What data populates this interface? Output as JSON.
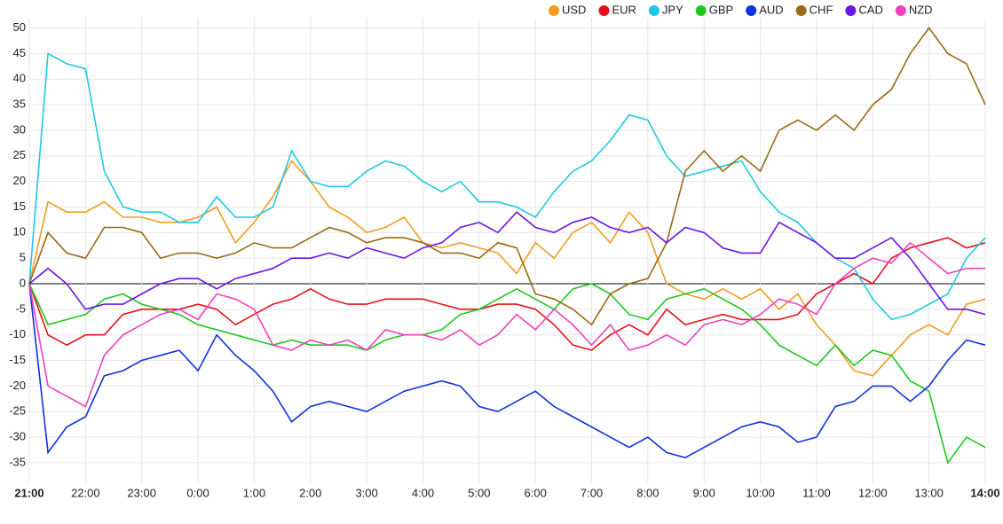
{
  "chart_data": {
    "type": "line",
    "categories": [
      "21:00",
      null,
      null,
      "22:00",
      null,
      null,
      "23:00",
      null,
      null,
      "0:00",
      null,
      null,
      "1:00",
      null,
      null,
      "2:00",
      null,
      null,
      "3:00",
      null,
      null,
      "4:00",
      null,
      null,
      "5:00",
      null,
      null,
      "6:00",
      null,
      null,
      "7:00",
      null,
      null,
      "8:00",
      null,
      null,
      "9:00",
      null,
      null,
      "10:00",
      null,
      null,
      "11:00",
      null,
      null,
      "12:00",
      null,
      null,
      "13:00",
      null,
      null,
      "14:00"
    ],
    "series": [
      {
        "name": "USD",
        "color": "#f39c1e",
        "values": [
          0,
          16,
          14,
          14,
          16,
          13,
          13,
          12,
          12,
          13,
          15,
          8,
          12,
          17,
          24,
          20,
          15,
          13,
          10,
          11,
          13,
          8,
          7,
          8,
          7,
          6,
          2,
          8,
          5,
          10,
          12,
          8,
          14,
          10,
          0,
          -2,
          -3,
          -1,
          -3,
          -1,
          -5,
          -2,
          -8,
          -12,
          -17,
          -18,
          -14,
          -10,
          -8,
          -10,
          -4,
          -3
        ]
      },
      {
        "name": "EUR",
        "color": "#e8101a",
        "values": [
          0,
          -10,
          -12,
          -10,
          -10,
          -6,
          -5,
          -5,
          -5,
          -4,
          -5,
          -8,
          -6,
          -4,
          -3,
          -1,
          -3,
          -4,
          -4,
          -3,
          -3,
          -3,
          -4,
          -5,
          -5,
          -4,
          -4,
          -5,
          -8,
          -12,
          -13,
          -10,
          -8,
          -10,
          -5,
          -8,
          -7,
          -6,
          -7,
          -7,
          -7,
          -6,
          -2,
          0,
          2,
          0,
          5,
          7,
          8,
          9,
          7,
          8
        ]
      },
      {
        "name": "JPY",
        "color": "#1ec8e8",
        "values": [
          0,
          45,
          43,
          42,
          22,
          15,
          14,
          14,
          12,
          12,
          17,
          13,
          13,
          15,
          26,
          20,
          19,
          19,
          22,
          24,
          23,
          20,
          18,
          20,
          16,
          16,
          15,
          13,
          18,
          22,
          24,
          28,
          33,
          32,
          25,
          21,
          22,
          23,
          24,
          18,
          14,
          12,
          8,
          5,
          3,
          -3,
          -7,
          -6,
          -4,
          -2,
          5,
          9
        ]
      },
      {
        "name": "GBP",
        "color": "#1ec81e",
        "values": [
          0,
          -8,
          -7,
          -6,
          -3,
          -2,
          -4,
          -5,
          -6,
          -8,
          -9,
          -10,
          -11,
          -12,
          -11,
          -12,
          -12,
          -12,
          -13,
          -11,
          -10,
          -10,
          -9,
          -6,
          -5,
          -3,
          -1,
          -3,
          -5,
          -1,
          0,
          -2,
          -6,
          -7,
          -3,
          -2,
          -1,
          -3,
          -5,
          -8,
          -12,
          -14,
          -16,
          -12,
          -16,
          -13,
          -14,
          -19,
          -21,
          -35,
          -30,
          -32
        ]
      },
      {
        "name": "AUD",
        "color": "#1032e0",
        "values": [
          0,
          -33,
          -28,
          -26,
          -18,
          -17,
          -15,
          -14,
          -13,
          -17,
          -10,
          -14,
          -17,
          -21,
          -27,
          -24,
          -23,
          -24,
          -25,
          -23,
          -21,
          -20,
          -19,
          -20,
          -24,
          -25,
          -23,
          -21,
          -24,
          -26,
          -28,
          -30,
          -32,
          -30,
          -33,
          -34,
          -32,
          -30,
          -28,
          -27,
          -28,
          -31,
          -30,
          -24,
          -23,
          -20,
          -20,
          -23,
          -20,
          -15,
          -11,
          -12
        ]
      },
      {
        "name": "CHF",
        "color": "#9a6a14",
        "values": [
          0,
          10,
          6,
          5,
          11,
          11,
          10,
          5,
          6,
          6,
          5,
          6,
          8,
          7,
          7,
          9,
          11,
          10,
          8,
          9,
          9,
          8,
          6,
          6,
          5,
          8,
          7,
          -2,
          -3,
          -5,
          -8,
          -2,
          0,
          1,
          8,
          22,
          26,
          22,
          25,
          22,
          30,
          32,
          30,
          33,
          30,
          35,
          38,
          45,
          50,
          45,
          43,
          35
        ]
      },
      {
        "name": "CAD",
        "color": "#6a14e8",
        "values": [
          0,
          3,
          0,
          -5,
          -4,
          -4,
          -2,
          0,
          1,
          1,
          -1,
          1,
          2,
          3,
          5,
          5,
          6,
          5,
          7,
          6,
          5,
          7,
          8,
          11,
          12,
          10,
          14,
          11,
          10,
          12,
          13,
          11,
          10,
          11,
          8,
          11,
          10,
          7,
          6,
          6,
          12,
          10,
          8,
          5,
          5,
          7,
          9,
          5,
          0,
          -5,
          -5,
          -6
        ]
      },
      {
        "name": "NZD",
        "color": "#f040c0",
        "values": [
          0,
          -20,
          -22,
          -24,
          -14,
          -10,
          -8,
          -6,
          -5,
          -7,
          -2,
          -3,
          -5,
          -12,
          -13,
          -11,
          -12,
          -11,
          -13,
          -9,
          -10,
          -10,
          -11,
          -9,
          -12,
          -10,
          -6,
          -9,
          -5,
          -8,
          -12,
          -8,
          -13,
          -12,
          -10,
          -12,
          -8,
          -7,
          -8,
          -6,
          -3,
          -4,
          -6,
          0,
          3,
          5,
          4,
          8,
          5,
          2,
          3,
          3
        ]
      }
    ],
    "ylim": [
      -39,
      52
    ],
    "yticks": [
      -35,
      -30,
      -25,
      -20,
      -15,
      -10,
      -5,
      0,
      5,
      10,
      15,
      20,
      25,
      30,
      35,
      40,
      45,
      50
    ],
    "grid": true,
    "legend": "top-right"
  }
}
